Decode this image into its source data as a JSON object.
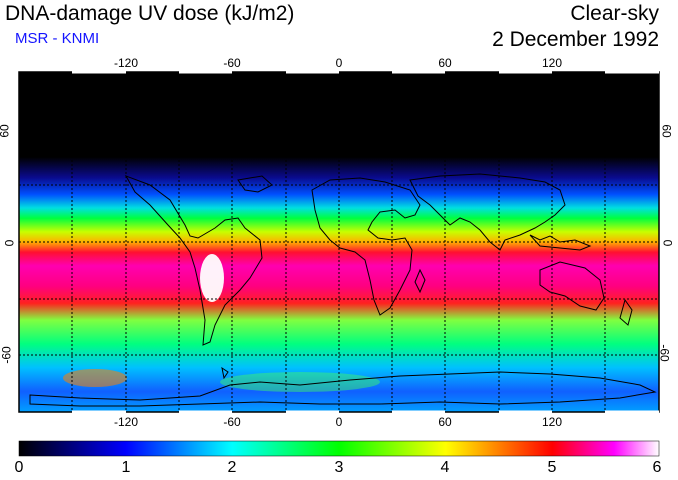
{
  "header": {
    "title": "DNA-damage UV dose (kJ/m2)",
    "source": "MSR - KNMI",
    "condition": "Clear-sky",
    "date": "2 December 1992"
  },
  "axes": {
    "lon_ticks": [
      "-120",
      "-60",
      "0",
      "60",
      "120"
    ],
    "lat_left": [
      "60",
      "0",
      "-60"
    ],
    "lat_right": [
      "60",
      "0",
      "-60"
    ]
  },
  "colorbar": {
    "min": 0,
    "max": 6,
    "labels": [
      "0",
      "1",
      "2",
      "3",
      "4",
      "5",
      "6"
    ],
    "colors": [
      "#000000",
      "#0000ff",
      "#00ffff",
      "#00ff00",
      "#ffff00",
      "#ff0000",
      "#ff00ff",
      "#ffffff"
    ]
  },
  "map_layers": [
    "uv-dose-field",
    "coastlines",
    "gridlines",
    "latitude-lines"
  ]
}
